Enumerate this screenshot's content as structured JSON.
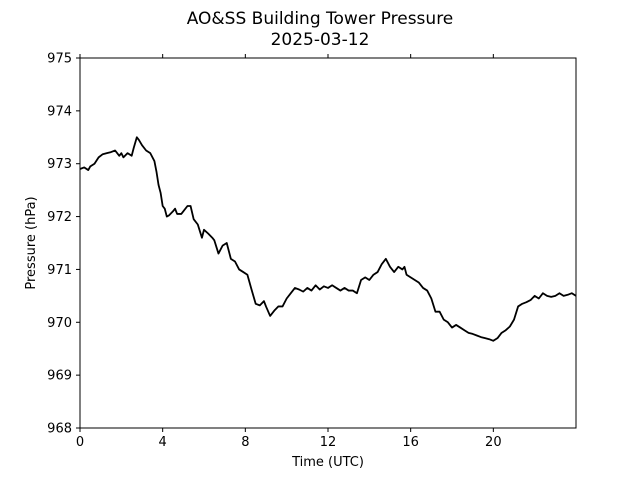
{
  "chart_data": {
    "type": "line",
    "title": "AO&SS Building Tower Pressure",
    "subtitle": "2025-03-12",
    "xlabel": "Time (UTC)",
    "ylabel": "Pressure (hPa)",
    "xlim": [
      0,
      24
    ],
    "ylim": [
      968,
      975
    ],
    "xticks": [
      0,
      4,
      8,
      12,
      16,
      20
    ],
    "yticks": [
      968,
      969,
      970,
      971,
      972,
      973,
      974,
      975
    ],
    "grid": false,
    "line_color": "#000000",
    "series": [
      {
        "x": [
          0,
          0.2,
          0.4,
          0.5,
          0.7,
          0.9,
          1.1,
          1.3,
          1.5,
          1.7,
          1.9,
          2.0,
          2.1,
          2.3,
          2.5,
          2.6,
          2.75,
          2.85,
          3.0,
          3.2,
          3.4,
          3.6,
          3.7,
          3.8,
          3.9,
          4.0,
          4.1,
          4.2,
          4.3,
          4.5,
          4.6,
          4.7,
          4.9,
          5.0,
          5.2,
          5.35,
          5.5,
          5.7,
          5.9,
          6.0,
          6.2,
          6.4,
          6.5,
          6.7,
          6.9,
          7.1,
          7.3,
          7.5,
          7.7,
          7.9,
          8.1,
          8.3,
          8.5,
          8.7,
          8.9,
          9.0,
          9.2,
          9.4,
          9.6,
          9.8,
          10.0,
          10.2,
          10.4,
          10.6,
          10.8,
          11.0,
          11.2,
          11.4,
          11.6,
          11.8,
          12.0,
          12.2,
          12.4,
          12.6,
          12.8,
          13.0,
          13.2,
          13.4,
          13.6,
          13.8,
          14.0,
          14.2,
          14.4,
          14.6,
          14.8,
          15.0,
          15.2,
          15.4,
          15.6,
          15.7,
          15.8,
          16.0,
          16.2,
          16.4,
          16.6,
          16.8,
          17.0,
          17.2,
          17.4,
          17.6,
          17.8,
          18.0,
          18.2,
          18.4,
          18.6,
          18.8,
          19.0,
          19.2,
          19.4,
          19.6,
          19.8,
          20.0,
          20.2,
          20.4,
          20.6,
          20.8,
          21.0,
          21.2,
          21.4,
          21.6,
          21.8,
          22.0,
          22.2,
          22.4,
          22.6,
          22.8,
          23.0,
          23.2,
          23.4,
          23.6,
          23.8,
          24.0
        ],
        "y": [
          972.9,
          972.93,
          972.88,
          972.95,
          973.0,
          973.12,
          973.18,
          973.2,
          973.22,
          973.25,
          973.15,
          973.2,
          973.12,
          973.2,
          973.15,
          973.3,
          973.5,
          973.45,
          973.35,
          973.25,
          973.2,
          973.05,
          972.85,
          972.6,
          972.45,
          972.2,
          972.15,
          972.0,
          972.02,
          972.1,
          972.15,
          972.05,
          972.05,
          972.1,
          972.2,
          972.2,
          971.95,
          971.85,
          971.6,
          971.75,
          971.68,
          971.6,
          971.55,
          971.3,
          971.45,
          971.5,
          971.2,
          971.15,
          971.0,
          970.95,
          970.9,
          970.62,
          970.35,
          970.32,
          970.4,
          970.3,
          970.12,
          970.22,
          970.3,
          970.3,
          970.45,
          970.55,
          970.65,
          970.62,
          970.58,
          970.65,
          970.6,
          970.7,
          970.62,
          970.68,
          970.65,
          970.7,
          970.65,
          970.6,
          970.65,
          970.6,
          970.6,
          970.55,
          970.8,
          970.85,
          970.8,
          970.9,
          970.95,
          971.1,
          971.2,
          971.05,
          970.95,
          971.05,
          971.0,
          971.05,
          970.9,
          970.85,
          970.8,
          970.75,
          970.65,
          970.6,
          970.45,
          970.2,
          970.2,
          970.05,
          970.0,
          969.9,
          969.95,
          969.9,
          969.85,
          969.8,
          969.78,
          969.75,
          969.72,
          969.7,
          969.68,
          969.65,
          969.7,
          969.8,
          969.85,
          969.92,
          970.05,
          970.3,
          970.35,
          970.38,
          970.42,
          970.5,
          970.45,
          970.55,
          970.5,
          970.48,
          970.5,
          970.55,
          970.5,
          970.52,
          970.55,
          970.5
        ],
        "name": ""
      }
    ]
  }
}
